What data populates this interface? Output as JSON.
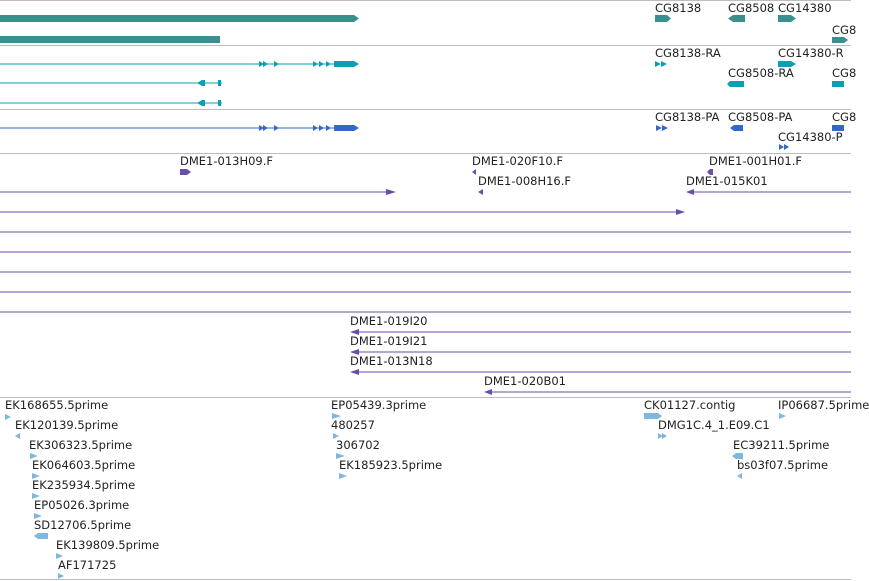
{
  "colors": {
    "gene": "#3a8f8f",
    "transcript": "#0a9fb4",
    "protein": "#3468c8",
    "clone": "#6a4ea8",
    "est": "#7eb9dc",
    "divider": "#bdbdbd",
    "text": "#222222"
  },
  "tracks": {
    "genes": {
      "labels": [
        "CG8138",
        "CG8508",
        "CG14380",
        "CG8"
      ]
    },
    "transcripts": {
      "labels": [
        "CG8138-RA",
        "CG14380-R",
        "CG8508-RA",
        "CG8"
      ]
    },
    "proteins": {
      "labels": [
        "CG8138-PA",
        "CG8508-PA",
        "CG8",
        "CG14380-P"
      ]
    },
    "clones": {
      "labels": [
        "DME1-013H09.F",
        "DME1-020F10.F",
        "DME1-001H01.F",
        "DME1-008H16.F",
        "DME1-015K01",
        "DME1-019I20",
        "DME1-019I21",
        "DME1-013N18",
        "DME1-020B01"
      ]
    },
    "ests": {
      "labels": [
        "EK168655.5prime",
        "EK120139.5prime",
        "EK306323.5prime",
        "EK064603.5prime",
        "EK235934.5prime",
        "EP05026.3prime",
        "SD12706.5prime",
        "EK139809.5prime",
        "AF171725",
        "EP05439.3prime",
        "480257",
        "306702",
        "EK185923.5prime",
        "CK01127.contig",
        "DMG1C.4_1.E09.C1",
        "IP06687.5prime",
        "EC39211.5prime",
        "bs03f07.5prime"
      ]
    }
  }
}
